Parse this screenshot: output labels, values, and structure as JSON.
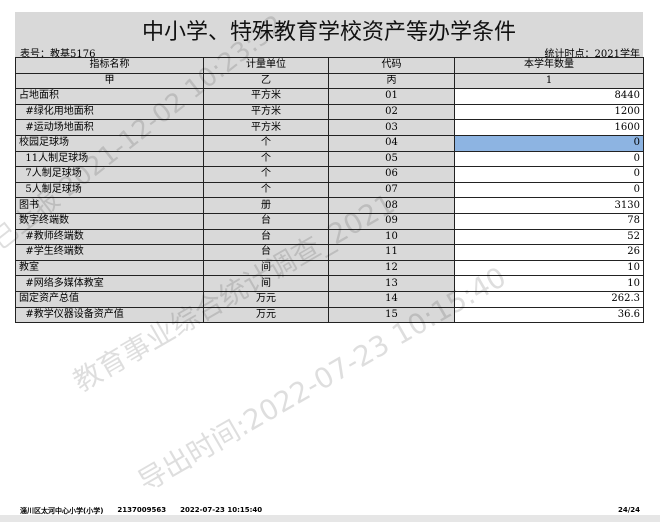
{
  "title": "中小学、特殊教育学校资产等办学条件",
  "form_no": "表号：教基5176",
  "stat_time": "统计时点：2021学年",
  "columns": [
    "指标名称",
    "计量单位",
    "代码",
    "本学年数量"
  ],
  "column_codes": [
    "甲",
    "乙",
    "丙",
    "1"
  ],
  "rows": [
    {
      "name": "占地面积",
      "unit": "平方米",
      "code": "01",
      "value": "8440"
    },
    {
      "name": "  #绿化用地面积",
      "unit": "平方米",
      "code": "02",
      "value": "1200"
    },
    {
      "name": "  #运动场地面积",
      "unit": "平方米",
      "code": "03",
      "value": "1600"
    },
    {
      "name": "校园足球场",
      "unit": "个",
      "code": "04",
      "value": "0"
    },
    {
      "name": "  11人制足球场",
      "unit": "个",
      "code": "05",
      "value": "0"
    },
    {
      "name": "  7人制足球场",
      "unit": "个",
      "code": "06",
      "value": "0"
    },
    {
      "name": "  5人制足球场",
      "unit": "个",
      "code": "07",
      "value": "0"
    },
    {
      "name": "图书",
      "unit": "册",
      "code": "08",
      "value": "3130"
    },
    {
      "name": "数字终端数",
      "unit": "台",
      "code": "09",
      "value": "78"
    },
    {
      "name": "  #教师终端数",
      "unit": "台",
      "code": "10",
      "value": "52"
    },
    {
      "name": "  #学生终端数",
      "unit": "台",
      "code": "11",
      "value": "26"
    },
    {
      "name": "教室",
      "unit": "间",
      "code": "12",
      "value": "10"
    },
    {
      "name": "  #网络多媒体教室",
      "unit": "间",
      "code": "13",
      "value": "10"
    },
    {
      "name": "固定资产总值",
      "unit": "万元",
      "code": "14",
      "value": "262.3"
    },
    {
      "name": "  #教学仪器设备资产值",
      "unit": "万元",
      "code": "15",
      "value": "36.6"
    }
  ],
  "selected_row": "04",
  "selected_color": "#8db4e2",
  "watermarks": [
    "已上报 2021-12-02 10:23:32",
    "教育事业综合统计调查_2021",
    "导出时间:2022-07-23 10:15:40"
  ],
  "footer": {
    "school": "淄川区太河中心小学(小学)",
    "code": "2137009563",
    "export_time": "2022-07-23 10:15:40",
    "page": "24/24"
  }
}
